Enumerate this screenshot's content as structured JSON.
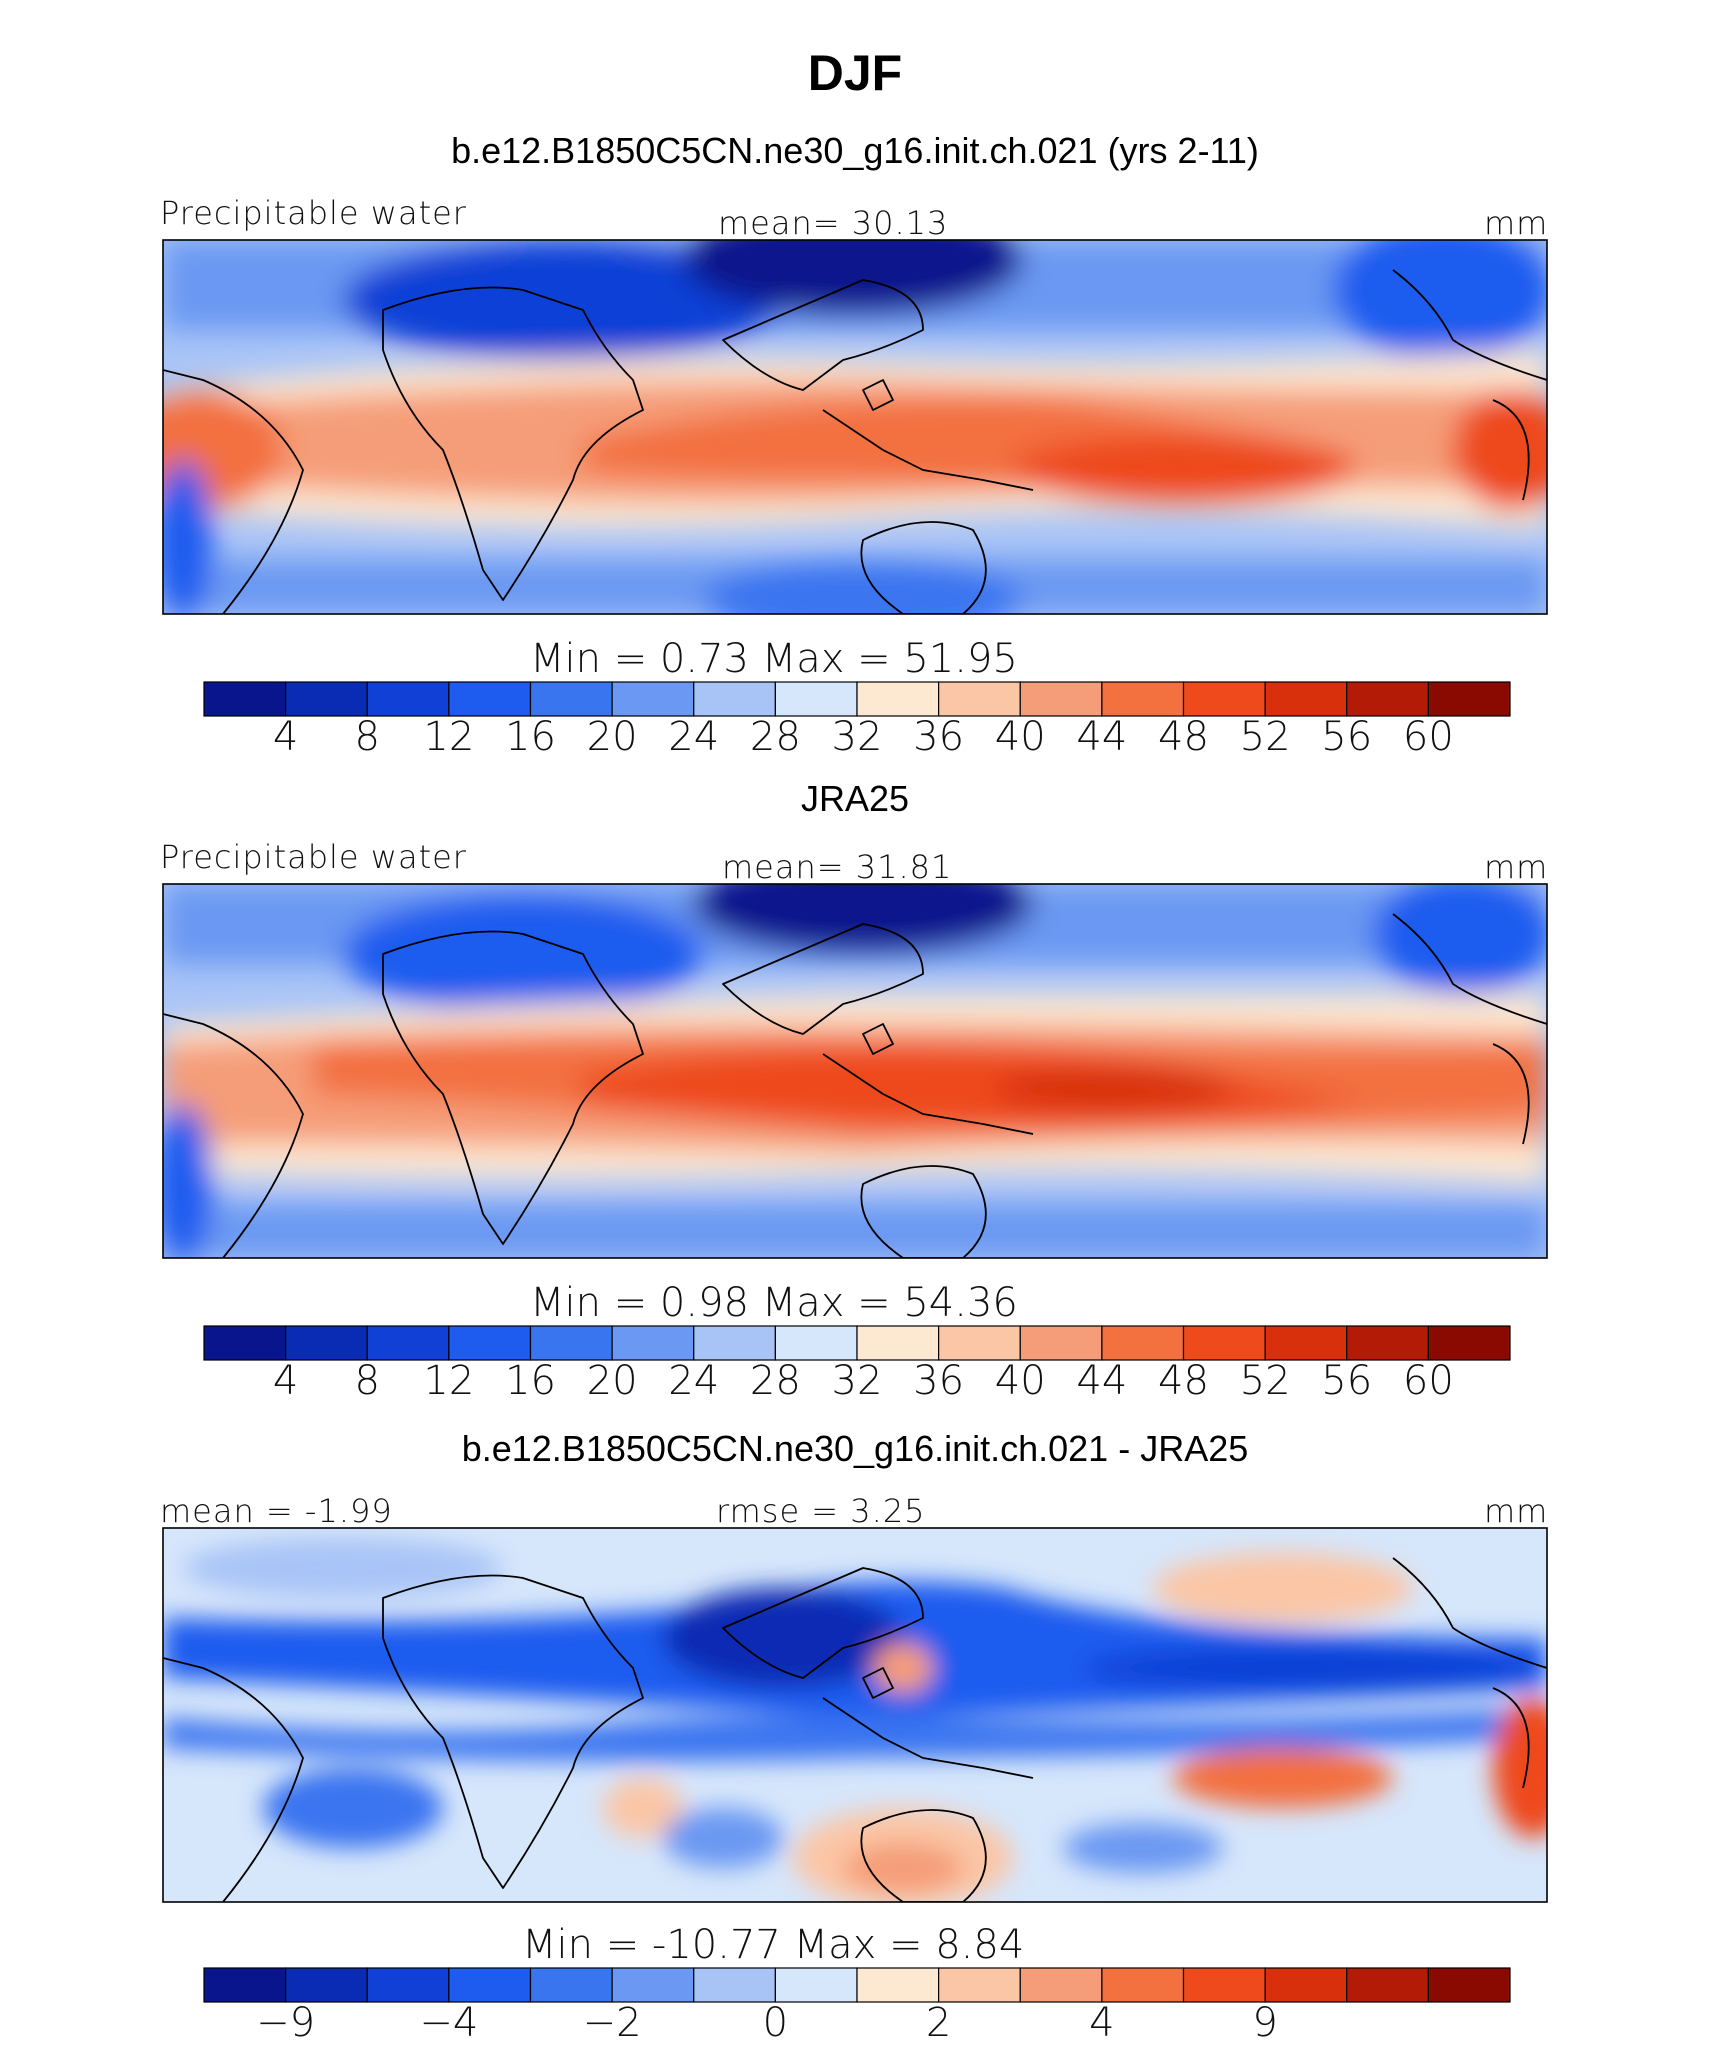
{
  "figure": {
    "title": "DJF"
  },
  "palette": {
    "colors": [
      "#08158c",
      "#0a2cb4",
      "#1140d6",
      "#1e5cef",
      "#3a75f0",
      "#6b98f2",
      "#a8c4f7",
      "#d6e6fb",
      "#fde8d2",
      "#fbc6a6",
      "#f59d78",
      "#f3703f",
      "#ee4a1c",
      "#d8300c",
      "#b31b06",
      "#8a0a02"
    ]
  },
  "panels": [
    {
      "id": "model",
      "title": "b.e12.B1850C5CN.ne30_g16.init.ch.021 (yrs 2-11)",
      "left_label": "Precipitable water",
      "center_label": "mean=   30.13",
      "units": "mm",
      "stats": "Min =    0.73  Max =   51.95",
      "colorbar_ticks": [
        "4",
        "8",
        "12",
        "16",
        "20",
        "24",
        "28",
        "32",
        "36",
        "40",
        "44",
        "48",
        "52",
        "56",
        "60"
      ]
    },
    {
      "id": "obs",
      "title": "JRA25",
      "left_label": "Precipitable water",
      "center_label": "mean=   31.81",
      "units": "mm",
      "stats": "Min =    0.98  Max =   54.36",
      "colorbar_ticks": [
        "4",
        "8",
        "12",
        "16",
        "20",
        "24",
        "28",
        "32",
        "36",
        "40",
        "44",
        "48",
        "52",
        "56",
        "60"
      ]
    },
    {
      "id": "diff",
      "title": "b.e12.B1850C5CN.ne30_g16.init.ch.021 - JRA25",
      "left_label": "mean =  -1.99",
      "center_label": "rmse =     3.25",
      "units": "mm",
      "stats": "Min = -10.77  Max =     8.84",
      "colorbar_ticks": [
        "-9",
        "",
        "-4",
        "",
        "-2",
        "",
        "0",
        "",
        "2",
        "",
        "4",
        "",
        "9",
        "",
        ""
      ]
    }
  ],
  "chart_data": [
    {
      "type": "heatmap",
      "title": "b.e12.B1850C5CN.ne30_g16.init.ch.021 (yrs 2-11)",
      "variable": "Precipitable water",
      "units": "mm",
      "mean": 30.13,
      "min": 0.73,
      "max": 51.95,
      "contour_levels": [
        4,
        8,
        12,
        16,
        20,
        24,
        28,
        32,
        36,
        40,
        44,
        48,
        52,
        56,
        60
      ]
    },
    {
      "type": "heatmap",
      "title": "JRA25",
      "variable": "Precipitable water",
      "units": "mm",
      "mean": 31.81,
      "min": 0.98,
      "max": 54.36,
      "contour_levels": [
        4,
        8,
        12,
        16,
        20,
        24,
        28,
        32,
        36,
        40,
        44,
        48,
        52,
        56,
        60
      ]
    },
    {
      "type": "heatmap",
      "title": "b.e12.B1850C5CN.ne30_g16.init.ch.021 - JRA25",
      "variable": "Precipitable water difference",
      "units": "mm",
      "mean": -1.99,
      "rmse": 3.25,
      "min": -10.77,
      "max": 8.84,
      "contour_levels": [
        -9,
        -6,
        -4,
        -3,
        -2,
        -1,
        0,
        1,
        2,
        3,
        4,
        6,
        9
      ]
    }
  ]
}
